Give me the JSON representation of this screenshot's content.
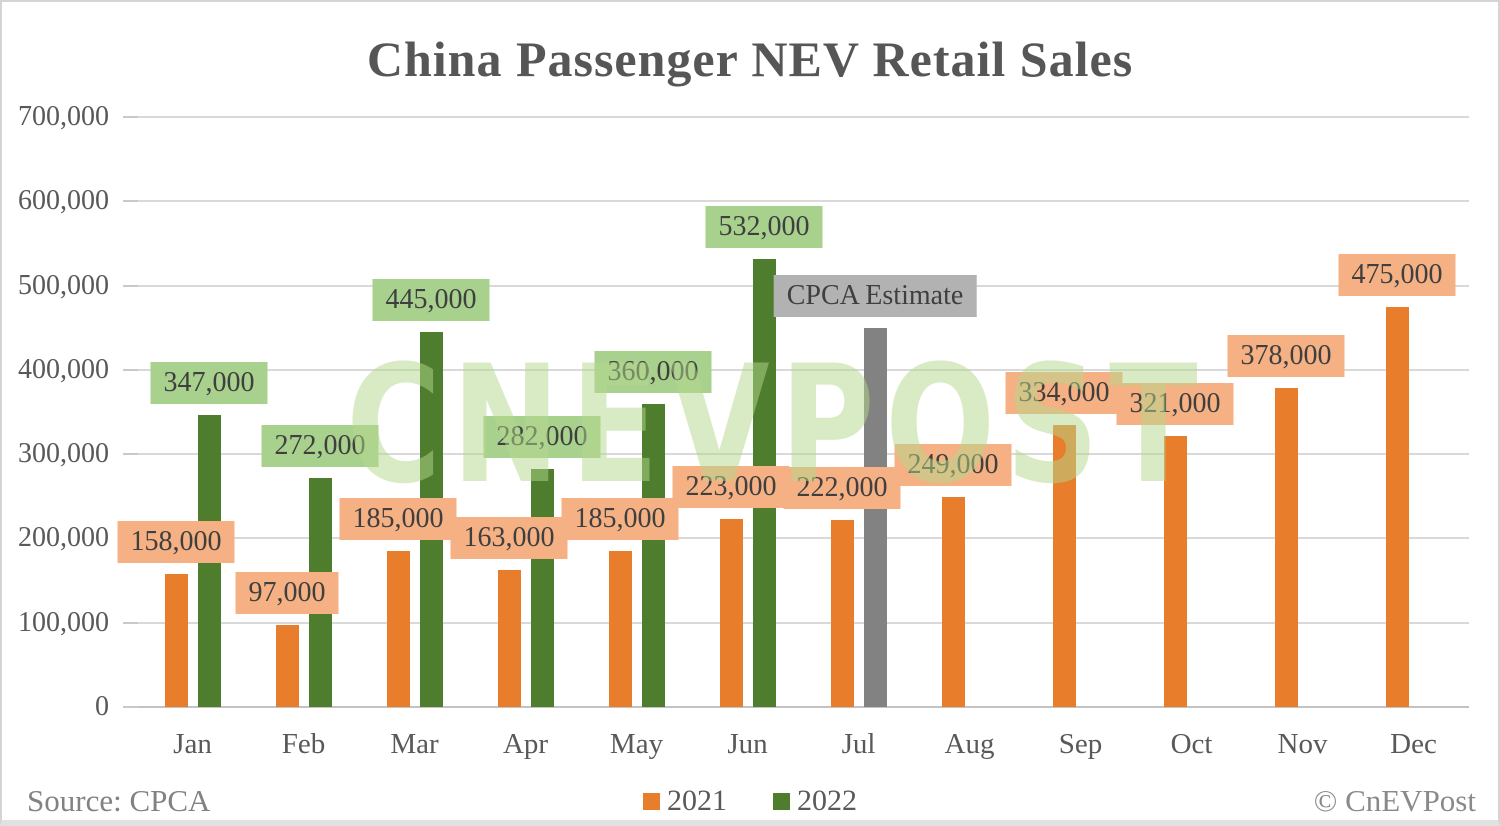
{
  "title": "China Passenger NEV Retail Sales",
  "watermark_text": "CNEVPOST",
  "footer": {
    "source": "Source: CPCA",
    "copyright": "© CnEVPost"
  },
  "legend": [
    {
      "label": "2021",
      "swatch": "#E87D2C"
    },
    {
      "label": "2022",
      "swatch": "#4E7E2D"
    }
  ],
  "colors": {
    "bar_2021": "#E87D2C",
    "bar_2022": "#4E7E2D",
    "bar_estimate": "#828282",
    "label_bg_2021": "#F5B183",
    "label_bg_2022": "#A9D18E",
    "label_bg_estimate": "#B2B2B2",
    "label_text": "#3F3F3F",
    "axis_text": "#595959",
    "gridline": "#D9D9D9"
  },
  "chart_data": {
    "type": "bar",
    "title": "China Passenger NEV Retail Sales",
    "categories": [
      "Jan",
      "Feb",
      "Mar",
      "Apr",
      "May",
      "Jun",
      "Jul",
      "Aug",
      "Sep",
      "Oct",
      "Nov",
      "Dec"
    ],
    "series": [
      {
        "name": "2021",
        "color": "#E87D2C",
        "label_bg": "#F5B183",
        "values": [
          158000,
          97000,
          185000,
          163000,
          185000,
          223000,
          222000,
          249000,
          334000,
          321000,
          378000,
          475000
        ]
      },
      {
        "name": "2022",
        "color": "#4E7E2D",
        "label_bg": "#A9D18E",
        "values": [
          347000,
          272000,
          445000,
          282000,
          360000,
          532000,
          null,
          null,
          null,
          null,
          null,
          null
        ]
      }
    ],
    "estimate_bar": {
      "series": "2022",
      "category": "Jul",
      "category_index": 6,
      "value": 450000,
      "label": "CPCA Estimate",
      "color": "#828282",
      "label_bg": "#B2B2B2"
    },
    "ylim": [
      0,
      700000
    ],
    "ytick_step": 100000,
    "grid": "horizontal",
    "legend_position": "bottom",
    "data_labels": "outside-end"
  }
}
